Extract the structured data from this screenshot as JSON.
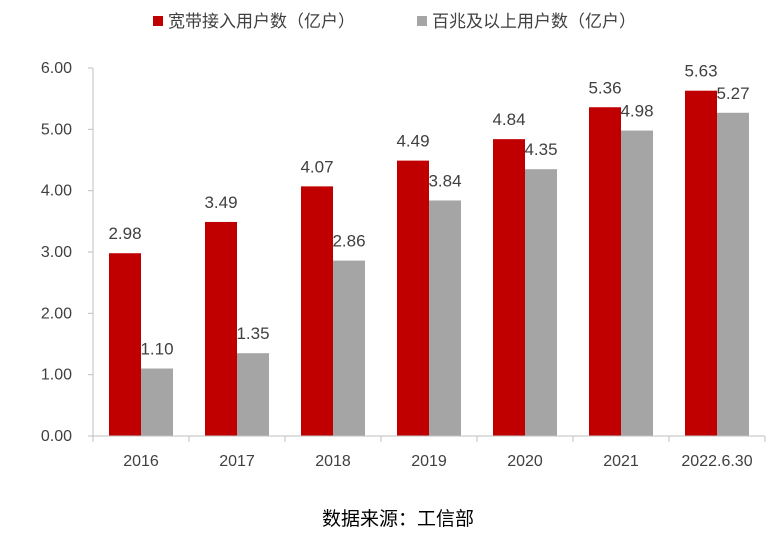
{
  "chart_data": {
    "type": "bar",
    "title": "",
    "xlabel": "",
    "ylabel": "",
    "categories": [
      "2016",
      "2017",
      "2018",
      "2019",
      "2020",
      "2021",
      "2022.6.30"
    ],
    "series": [
      {
        "name": "宽带接入用户数（亿户）",
        "color": "#c00000",
        "values": [
          2.98,
          3.49,
          4.07,
          4.49,
          4.84,
          5.36,
          5.63
        ]
      },
      {
        "name": "百兆及以上用户数（亿户）",
        "color": "#a5a5a5",
        "values": [
          1.1,
          1.35,
          2.86,
          3.84,
          4.35,
          4.98,
          5.27
        ]
      }
    ],
    "ylim": [
      0,
      6
    ],
    "yticks": [
      "0.00",
      "1.00",
      "2.00",
      "3.00",
      "4.00",
      "5.00",
      "6.00"
    ],
    "ytick_values": [
      0,
      1,
      2,
      3,
      4,
      5,
      6
    ],
    "data_labels": [
      [
        "2.98",
        "3.49",
        "4.07",
        "4.49",
        "4.84",
        "5.36",
        "5.63"
      ],
      [
        "1.10",
        "1.35",
        "2.86",
        "3.84",
        "4.35",
        "4.98",
        "5.27"
      ]
    ],
    "grid": false,
    "legend_position": "top-center"
  },
  "source": "数据来源：工信部"
}
